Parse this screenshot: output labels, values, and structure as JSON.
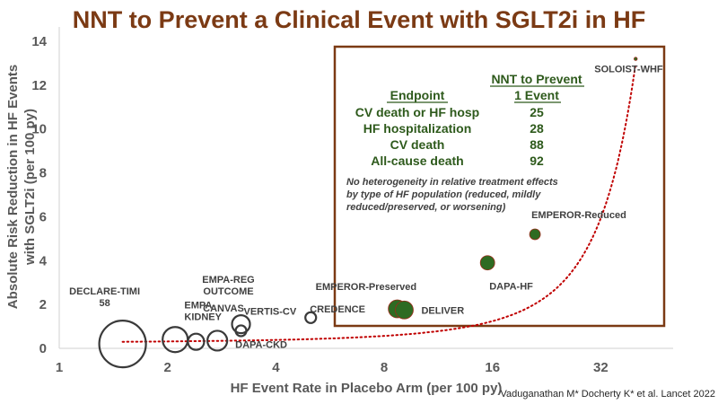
{
  "chart_data": {
    "type": "scatter",
    "title": "NNT to Prevent a Clinical Event with SGLT2i in HF",
    "xlabel": "HF Event Rate in Placebo Arm (per 100 py)",
    "ylabel_lines": [
      "Absolute Risk Reduction in HF Events",
      "with SGLT2i (per 100 py)"
    ],
    "x_scale": "log2",
    "xlim": [
      1,
      48
    ],
    "ylim": [
      0,
      14
    ],
    "x_ticks": [
      1,
      2,
      4,
      8,
      16,
      32
    ],
    "y_ticks": [
      0,
      2,
      4,
      6,
      8,
      10,
      12,
      14
    ],
    "points": [
      {
        "name": "DECLARE-TIMI 58",
        "label_lines": [
          "DECLARE-TIMI",
          "58"
        ],
        "x": 1.5,
        "y": 0.2,
        "size": 26,
        "fill": "none"
      },
      {
        "name": "CANVAS",
        "label_lines": [
          "CANVAS"
        ],
        "x": 2.1,
        "y": 0.4,
        "size": 14,
        "fill": "none"
      },
      {
        "name": "EMPA-KIDNEY",
        "label_lines": [
          "EMPA-",
          "KIDNEY"
        ],
        "x": 2.4,
        "y": 0.3,
        "size": 9,
        "fill": "none"
      },
      {
        "name": "DAPA-CKD",
        "label_lines": [
          "DAPA-CKD"
        ],
        "x": 2.75,
        "y": 0.35,
        "size": 11,
        "fill": "none"
      },
      {
        "name": "EMPA-REG OUTCOME",
        "label_lines": [
          "EMPA-REG",
          "OUTCOME"
        ],
        "x": 3.2,
        "y": 1.1,
        "size": 10,
        "fill": "none"
      },
      {
        "name": "VERTIS-CV",
        "label_lines": [
          "VERTIS-CV"
        ],
        "x": 3.2,
        "y": 0.8,
        "size": 6,
        "fill": "none"
      },
      {
        "name": "CREDENCE",
        "label_lines": [
          "CREDENCE"
        ],
        "x": 5.0,
        "y": 1.4,
        "size": 6,
        "fill": "none"
      },
      {
        "name": "EMPEROR-Preserved",
        "label_lines": [
          "EMPEROR-Preserved"
        ],
        "x": 8.7,
        "y": 1.8,
        "size": 10,
        "fill": "#2e6b22"
      },
      {
        "name": "DELIVER",
        "label_lines": [
          "DELIVER"
        ],
        "x": 9.1,
        "y": 1.75,
        "size": 10,
        "fill": "#2e6b22"
      },
      {
        "name": "DAPA-HF",
        "label_lines": [
          "DAPA-HF"
        ],
        "x": 15.5,
        "y": 3.9,
        "size": 8,
        "fill": "#2e6b22"
      },
      {
        "name": "EMPEROR-Reduced",
        "label_lines": [
          "EMPEROR-Reduced"
        ],
        "x": 21.0,
        "y": 5.2,
        "size": 6,
        "fill": "#2e6b22"
      },
      {
        "name": "SOLOIST-WHF",
        "label_lines": [
          "SOLOIST-WHF"
        ],
        "x": 40.0,
        "y": 13.2,
        "size": 1.8,
        "fill": "#2e6b22"
      }
    ],
    "trendline": {
      "type": "exponential",
      "style": "dotted",
      "color": "#c00000",
      "x_start": 1.5,
      "y_start": 0.3,
      "x_end": 40.0,
      "y_end": 13.0
    },
    "inset_table": {
      "headers": {
        "endpoint": "Endpoint",
        "nnt_line1": "NNT to Prevent",
        "nnt_line2": "1 Event"
      },
      "rows": [
        {
          "endpoint": "CV death or HF hosp",
          "nnt": "25"
        },
        {
          "endpoint": "HF hospitalization",
          "nnt": "28"
        },
        {
          "endpoint": "CV death",
          "nnt": "88"
        },
        {
          "endpoint": "All-cause death",
          "nnt": "92"
        }
      ],
      "note_lines": [
        "No heterogeneity in relative treatment effects",
        "by type of HF population (reduced, mildly",
        "reduced/preserved, or worsening)"
      ]
    }
  },
  "citation": "Vaduganathan  M* Docherty K* et al. Lancet 2022",
  "colors": {
    "title": "#7b3a14",
    "box_border": "#7b3a14",
    "axis_text": "#595959",
    "table_text": "#2e5a1c",
    "point_fill": "#2e6b22",
    "trendline": "#c00000"
  }
}
